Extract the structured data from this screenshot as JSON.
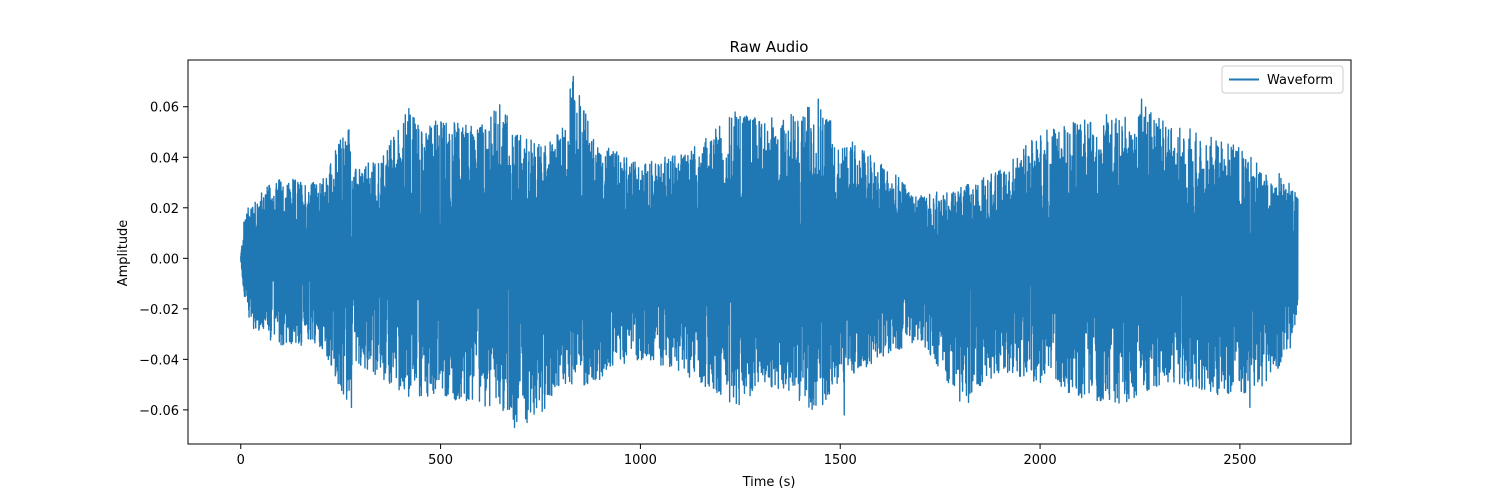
{
  "chart_data": {
    "type": "line",
    "title": "Raw Audio",
    "xlabel": "Time (s)",
    "ylabel": "Amplitude",
    "xlim": [
      -132,
      2778
    ],
    "ylim": [
      -0.0735,
      0.0785
    ],
    "xticks": [
      0,
      500,
      1000,
      1500,
      2000,
      2500
    ],
    "xtick_labels": [
      "0",
      "500",
      "1000",
      "1500",
      "2000",
      "2500"
    ],
    "yticks": [
      -0.06,
      -0.04,
      -0.02,
      0.0,
      0.02,
      0.04,
      0.06
    ],
    "ytick_labels": [
      "−0.06",
      "−0.04",
      "−0.02",
      "0.00",
      "0.02",
      "0.04",
      "0.06"
    ],
    "grid": false,
    "legend_position": "top-right",
    "series": [
      {
        "name": "Waveform",
        "color": "#1f77b4",
        "x_range": [
          0,
          2645
        ],
        "envelope": {
          "x": [
            0,
            10,
            30,
            100,
            200,
            270,
            280,
            350,
            420,
            500,
            600,
            650,
            700,
            760,
            800,
            830,
            900,
            1000,
            1100,
            1200,
            1250,
            1300,
            1400,
            1445,
            1500,
            1600,
            1700,
            1800,
            1900,
            2000,
            2100,
            2200,
            2250,
            2300,
            2400,
            2500,
            2560,
            2620,
            2645
          ],
          "upper": [
            0.001,
            0.018,
            0.025,
            0.032,
            0.03,
            0.055,
            0.035,
            0.04,
            0.06,
            0.055,
            0.053,
            0.062,
            0.05,
            0.045,
            0.05,
            0.072,
            0.045,
            0.038,
            0.042,
            0.053,
            0.06,
            0.055,
            0.058,
            0.063,
            0.05,
            0.038,
            0.025,
            0.028,
            0.035,
            0.05,
            0.055,
            0.058,
            0.063,
            0.055,
            0.05,
            0.045,
            0.035,
            0.033,
            0.024
          ],
          "lower": [
            -0.001,
            -0.018,
            -0.028,
            -0.035,
            -0.035,
            -0.06,
            -0.04,
            -0.048,
            -0.055,
            -0.055,
            -0.058,
            -0.06,
            -0.067,
            -0.06,
            -0.05,
            -0.052,
            -0.048,
            -0.04,
            -0.045,
            -0.055,
            -0.06,
            -0.05,
            -0.057,
            -0.062,
            -0.05,
            -0.04,
            -0.032,
            -0.057,
            -0.045,
            -0.05,
            -0.055,
            -0.058,
            -0.055,
            -0.05,
            -0.052,
            -0.058,
            -0.05,
            -0.04,
            -0.025
          ]
        },
        "peaks": [
          {
            "x": 832,
            "y": 0.072
          },
          {
            "x": 1445,
            "y": 0.063
          },
          {
            "x": 2254,
            "y": 0.063
          },
          {
            "x": 685,
            "y": -0.067
          },
          {
            "x": 277,
            "y": -0.059
          },
          {
            "x": 1510,
            "y": -0.062
          },
          {
            "x": 1821,
            "y": -0.057
          },
          {
            "x": 2525,
            "y": -0.059
          }
        ]
      }
    ]
  }
}
